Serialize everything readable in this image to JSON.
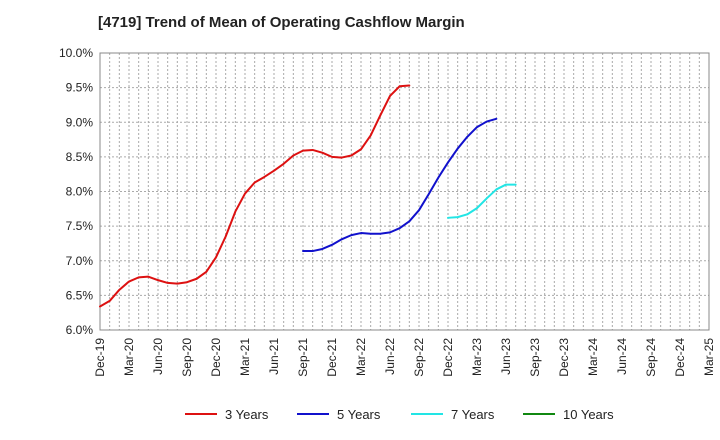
{
  "chart_data": {
    "type": "line",
    "title": "[4719]  Trend of Mean of Operating Cashflow Margin",
    "xlabel": "",
    "ylabel": "",
    "ylim": [
      6.0,
      10.0
    ],
    "y_ticks": [
      "6.0%",
      "6.5%",
      "7.0%",
      "7.5%",
      "8.0%",
      "8.5%",
      "9.0%",
      "9.5%",
      "10.0%"
    ],
    "y_tick_values": [
      6.0,
      6.5,
      7.0,
      7.5,
      8.0,
      8.5,
      9.0,
      9.5,
      10.0
    ],
    "x_ticks": [
      "Dec-19",
      "Mar-20",
      "Jun-20",
      "Sep-20",
      "Dec-20",
      "Mar-21",
      "Jun-21",
      "Sep-21",
      "Dec-21",
      "Mar-22",
      "Jun-22",
      "Sep-22",
      "Dec-22",
      "Mar-23",
      "Jun-23",
      "Sep-23",
      "Dec-23",
      "Mar-24",
      "Jun-24",
      "Sep-24",
      "Dec-24",
      "Mar-25"
    ],
    "grid": true,
    "legend_position": "bottom",
    "series": [
      {
        "name": "3 Years",
        "color": "#dd1111",
        "values": [
          6.34,
          6.42,
          6.58,
          6.7,
          6.76,
          6.77,
          6.72,
          6.68,
          6.67,
          6.69,
          6.74,
          6.84,
          7.05,
          7.35,
          7.71,
          7.97,
          8.13,
          8.21,
          8.3,
          8.4,
          8.52,
          8.59,
          8.6,
          8.56,
          8.5,
          8.49,
          8.52,
          8.61,
          8.81,
          9.1,
          9.38,
          9.52,
          9.53
        ]
      },
      {
        "name": "5 Years",
        "color": "#1111cc",
        "values": [
          null,
          null,
          null,
          null,
          null,
          null,
          null,
          null,
          null,
          null,
          null,
          null,
          null,
          null,
          null,
          null,
          null,
          null,
          null,
          null,
          null,
          7.14,
          7.14,
          7.17,
          7.23,
          7.31,
          7.37,
          7.4,
          7.39,
          7.39,
          7.41,
          7.47,
          7.57,
          7.73,
          7.96,
          8.2,
          8.42,
          8.62,
          8.79,
          8.93,
          9.01,
          9.05
        ]
      },
      {
        "name": "7 Years",
        "color": "#22e5e5",
        "values": [
          null,
          null,
          null,
          null,
          null,
          null,
          null,
          null,
          null,
          null,
          null,
          null,
          null,
          null,
          null,
          null,
          null,
          null,
          null,
          null,
          null,
          null,
          null,
          null,
          null,
          null,
          null,
          null,
          null,
          null,
          null,
          null,
          null,
          null,
          null,
          null,
          7.62,
          7.63,
          7.67,
          7.76,
          7.9,
          8.03,
          8.1,
          8.1
        ]
      },
      {
        "name": "10 Years",
        "color": "#118811",
        "values": []
      }
    ]
  }
}
